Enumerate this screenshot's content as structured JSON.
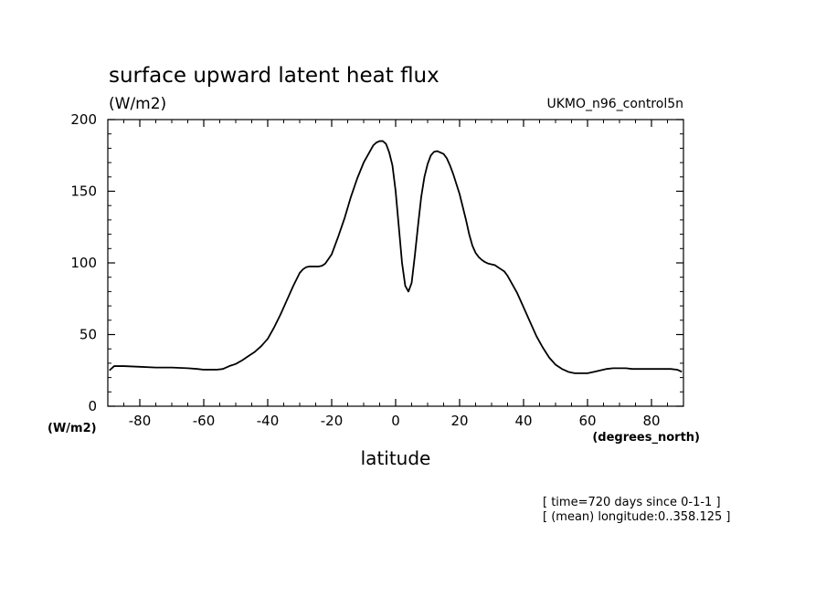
{
  "chart_data": {
    "type": "line",
    "title": "surface upward latent heat flux",
    "units": "(W/m2)",
    "source": "UKMO_n96_control5n",
    "xlabel": "latitude",
    "x_units": "(degrees_north)",
    "y_units": "(W/m2)",
    "xlim": [
      -90,
      90
    ],
    "ylim": [
      0,
      200
    ],
    "x_ticks": [
      -80,
      -60,
      -40,
      -20,
      0,
      20,
      40,
      60,
      80
    ],
    "x_tick_labels": [
      "-80",
      "-60",
      "-40",
      "-20",
      "0",
      "20",
      "40",
      "60",
      "80"
    ],
    "y_ticks": [
      0,
      50,
      100,
      150,
      200
    ],
    "y_tick_labels": [
      "0",
      "50",
      "100",
      "150",
      "200"
    ],
    "grid": false,
    "annotations": [
      "[ time=720 days since 0-1-1 ]",
      "[ (mean) longitude:0..358.125 ]"
    ],
    "series": [
      {
        "color": "#000000",
        "x": [
          -89.5,
          -88,
          -85,
          -80,
          -75,
          -70,
          -65,
          -62,
          -60,
          -58,
          -56,
          -54,
          -52,
          -50,
          -48,
          -46,
          -44,
          -42,
          -40,
          -38,
          -36,
          -34,
          -32,
          -30,
          -29,
          -28,
          -27,
          -26,
          -25,
          -24,
          -23,
          -22,
          -20,
          -18,
          -16,
          -14,
          -12,
          -10,
          -8,
          -7,
          -6,
          -5,
          -4,
          -3,
          -2,
          -1,
          0,
          1,
          2,
          3,
          4,
          5,
          6,
          7,
          8,
          9,
          10,
          11,
          12,
          13,
          14,
          15,
          16,
          17,
          18,
          19,
          20,
          21,
          22,
          23,
          24,
          25,
          26,
          27,
          28,
          29,
          30,
          31,
          32,
          33,
          34,
          35,
          36,
          38,
          40,
          42,
          44,
          46,
          48,
          50,
          52,
          54,
          56,
          58,
          60,
          62,
          64,
          66,
          68,
          70,
          72,
          74,
          76,
          78,
          80,
          82,
          84,
          86,
          88,
          89.5
        ],
        "y": [
          25,
          28,
          28,
          27.5,
          27,
          27,
          26.5,
          26,
          25.5,
          25.5,
          25.5,
          26,
          28,
          29.5,
          32,
          35,
          38,
          42,
          47,
          55,
          64,
          74,
          84,
          93,
          95.5,
          97,
          97.5,
          97.5,
          97.5,
          97.5,
          98,
          99.5,
          106,
          118,
          131,
          146,
          159,
          170,
          178,
          182,
          184,
          185,
          185,
          183,
          177,
          168,
          150,
          125,
          100,
          84,
          80,
          86,
          105,
          126,
          146,
          160,
          169,
          175,
          177.5,
          178,
          177,
          176,
          173,
          168,
          162,
          155,
          148,
          139,
          130,
          120,
          112,
          107,
          104,
          102,
          100.5,
          99.5,
          99,
          98.5,
          97,
          95.5,
          94,
          91,
          87,
          79,
          69,
          59,
          49,
          41,
          34,
          29,
          26,
          24,
          23,
          23,
          23,
          24,
          25,
          26,
          26.5,
          26.5,
          26.5,
          26,
          26,
          26,
          26,
          26,
          26,
          26,
          25.5,
          24
        ]
      }
    ]
  }
}
